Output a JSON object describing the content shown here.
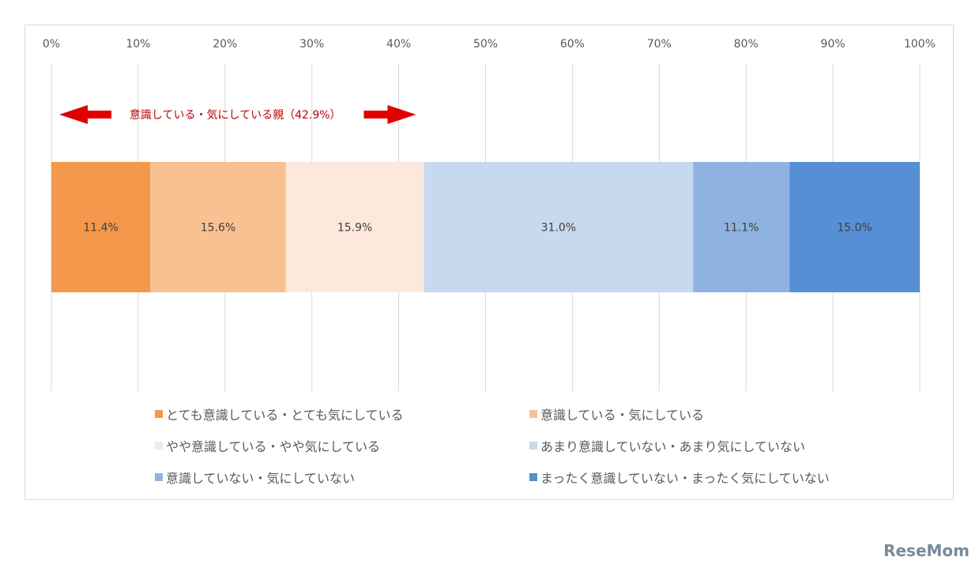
{
  "chart_data": {
    "type": "bar",
    "orientation": "horizontal-stacked-100",
    "xlim": [
      0,
      100
    ],
    "x_ticks": [
      "0%",
      "10%",
      "20%",
      "30%",
      "40%",
      "50%",
      "60%",
      "70%",
      "80%",
      "90%",
      "100%"
    ],
    "grid": "vertical",
    "legend_position": "bottom",
    "series": [
      {
        "name": "とても意識している・とても気にしている",
        "value": 11.4,
        "label": "11.4%",
        "color": "#f4984b"
      },
      {
        "name": "意識している・気にしている",
        "value": 15.6,
        "label": "15.6%",
        "color": "#f9c091"
      },
      {
        "name": "やや意識している・やや気にしている",
        "value": 15.9,
        "label": "15.9%",
        "color": "#fce9dc"
      },
      {
        "name": "あまり意識していない・あまり気にしていない",
        "value": 31.0,
        "label": "31.0%",
        "color": "#c7d9ef"
      },
      {
        "name": "意識していない・気にしていない",
        "value": 11.1,
        "label": "11.1%",
        "color": "#8fb3e0"
      },
      {
        "name": "まったく意識していない・まったく気にしていない",
        "value": 15.0,
        "label": "15.0%",
        "color": "#568fd4"
      }
    ],
    "annotation": {
      "text": "意識している・気にしている親（42.9%）",
      "from": 0,
      "to": 42.9,
      "color": "#e00000"
    }
  },
  "watermark": "ReseMom"
}
